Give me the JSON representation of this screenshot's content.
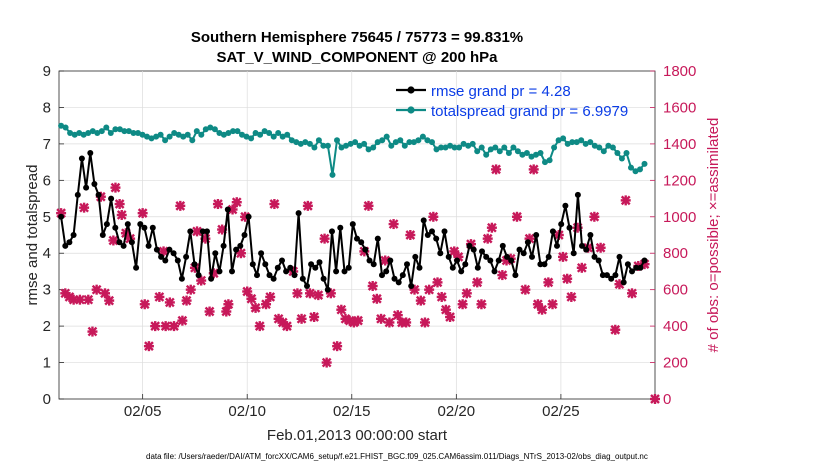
{
  "chart_data": {
    "type": "line",
    "title_line1": "Southern Hemisphere 75645 / 75773 = 99.831%",
    "title_line2": "SAT_V_WIND_COMPONENT @ 200 hPa",
    "xlabel": "Feb.01,2013 00:00:00 start",
    "ylabel_left": "rmse and totalspread",
    "ylabel_right": "# of obs: o=possible; ×=assimilated",
    "xlim": [
      1.0,
      29.5
    ],
    "ylim_left": [
      0,
      9
    ],
    "ylim_right": [
      0,
      1800
    ],
    "x_ticks": [
      {
        "x": 5,
        "label": "02/05"
      },
      {
        "x": 10,
        "label": "02/10"
      },
      {
        "x": 15,
        "label": "02/15"
      },
      {
        "x": 20,
        "label": "02/20"
      },
      {
        "x": 25,
        "label": "02/25"
      }
    ],
    "y_ticks_left": [
      "0",
      "1",
      "2",
      "3",
      "4",
      "5",
      "6",
      "7",
      "8",
      "9"
    ],
    "y_ticks_right": [
      "0",
      "200",
      "400",
      "600",
      "800",
      "1000",
      "1200",
      "1400",
      "1600",
      "1800"
    ],
    "legend": [
      {
        "label": "rmse grand pr = 4.28",
        "color": "#000000"
      },
      {
        "label": "totalspread grand pr = 6.9979",
        "color": "#0e8a85"
      }
    ],
    "footer": "data file: /Users/raeder/DAI/ATM_forcXX/CAM6_setup/f.e21.FHIST_BGC.f09_025.CAM6assim.011/Diags_NTrS_2013-02/obs_diag_output.nc",
    "series": [
      {
        "name": "rmse",
        "color": "#000000",
        "y": [
          5.0,
          4.2,
          4.3,
          4.5,
          5.6,
          6.6,
          5.8,
          6.75,
          5.9,
          5.6,
          4.5,
          4.8,
          5.5,
          4.7,
          4.3,
          4.2,
          4.8,
          4.3,
          3.6,
          4.8,
          4.7,
          4.2,
          4.7,
          4.1,
          3.9,
          3.8,
          4.1,
          4.0,
          3.8,
          3.3,
          3.9,
          4.6,
          3.7,
          3.4,
          4.6,
          4.6,
          3.3,
          4.0,
          3.5,
          4.2,
          5.2,
          3.5,
          4.1,
          4.2,
          4.5,
          5.0,
          3.7,
          3.4,
          4.0,
          3.7,
          3.4,
          3.3,
          3.6,
          3.8,
          3.5,
          3.6,
          3.4,
          5.1,
          3.3,
          3.1,
          3.7,
          3.6,
          3.75,
          3.3,
          3.0,
          4.6,
          3.5,
          4.7,
          3.5,
          3.6,
          4.8,
          4.4,
          4.3,
          4.1,
          3.8,
          3.7,
          4.4,
          3.4,
          3.5,
          3.8,
          3.3,
          3.2,
          3.4,
          3.7,
          3.1,
          3.9,
          3.6,
          4.9,
          4.5,
          4.6,
          4.4,
          4.0,
          4.6,
          3.9,
          3.6,
          3.8,
          3.5,
          3.7,
          4.2,
          4.1,
          3.6,
          4.05,
          3.9,
          3.8,
          3.5,
          3.8,
          4.2,
          3.9,
          3.8,
          3.4,
          4.1,
          4.0,
          4.3,
          3.9,
          4.5,
          3.7,
          3.7,
          3.9,
          4.6,
          4.2,
          4.8,
          5.3,
          4.7,
          4.0,
          5.6,
          4.2,
          4.1,
          4.5,
          3.9,
          3.8,
          3.4,
          3.4,
          3.3,
          3.4,
          3.9,
          3.2,
          3.7,
          3.5,
          3.6,
          3.6,
          3.8
        ]
      },
      {
        "name": "totalspread",
        "color": "#0e8a85",
        "y": [
          7.5,
          7.45,
          7.3,
          7.25,
          7.3,
          7.25,
          7.3,
          7.35,
          7.3,
          7.35,
          7.45,
          7.3,
          7.4,
          7.4,
          7.35,
          7.35,
          7.3,
          7.3,
          7.25,
          7.2,
          7.15,
          7.2,
          7.25,
          7.1,
          7.2,
          7.3,
          7.25,
          7.2,
          7.25,
          7.1,
          7.35,
          7.25,
          7.4,
          7.45,
          7.4,
          7.3,
          7.25,
          7.3,
          7.35,
          7.35,
          7.25,
          7.2,
          7.15,
          7.3,
          7.25,
          7.35,
          7.3,
          7.2,
          7.3,
          7.2,
          7.25,
          7.1,
          7.05,
          7.0,
          7.05,
          7.0,
          6.9,
          7.1,
          6.95,
          6.95,
          6.15,
          7.1,
          6.9,
          6.95,
          7.0,
          7.05,
          6.95,
          7.0,
          6.85,
          6.9,
          7.05,
          7.1,
          7.2,
          6.95,
          7.05,
          7.1,
          6.95,
          7.05,
          7.05,
          7.1,
          7.2,
          7.1,
          7.05,
          6.85,
          6.9,
          6.9,
          6.95,
          6.9,
          6.9,
          7.0,
          6.95,
          7.0,
          6.8,
          6.9,
          6.7,
          6.85,
          6.9,
          6.8,
          6.9,
          6.75,
          6.9,
          6.8,
          6.7,
          6.75,
          6.65,
          6.7,
          6.75,
          6.5,
          6.55,
          6.9,
          7.1,
          7.15,
          7.0,
          7.05,
          7.05,
          7.1,
          7.0,
          7.05,
          6.95,
          6.9,
          6.8,
          6.95,
          6.9,
          6.75,
          6.6,
          6.75,
          6.35,
          6.25,
          6.3,
          6.45
        ]
      },
      {
        "name": "# assimilated",
        "color": "#c7195a",
        "markers": [
          {
            "x": 1.1,
            "y": 1020
          },
          {
            "x": 1.3,
            "y": 580
          },
          {
            "x": 1.5,
            "y": 560
          },
          {
            "x": 1.7,
            "y": 545
          },
          {
            "x": 2.0,
            "y": 545
          },
          {
            "x": 2.2,
            "y": 1050
          },
          {
            "x": 2.4,
            "y": 545
          },
          {
            "x": 2.6,
            "y": 370
          },
          {
            "x": 2.8,
            "y": 600
          },
          {
            "x": 3.0,
            "y": 1110
          },
          {
            "x": 3.2,
            "y": 580
          },
          {
            "x": 3.4,
            "y": 540
          },
          {
            "x": 3.7,
            "y": 1160
          },
          {
            "x": 3.9,
            "y": 1070
          },
          {
            "x": 3.6,
            "y": 870
          },
          {
            "x": 4.2,
            "y": 910
          },
          {
            "x": 4.4,
            "y": 880
          },
          {
            "x": 4.0,
            "y": 1010
          },
          {
            "x": 5.0,
            "y": 1020
          },
          {
            "x": 5.1,
            "y": 520
          },
          {
            "x": 5.3,
            "y": 290
          },
          {
            "x": 5.6,
            "y": 400
          },
          {
            "x": 5.8,
            "y": 560
          },
          {
            "x": 6.0,
            "y": 810
          },
          {
            "x": 6.1,
            "y": 400
          },
          {
            "x": 6.3,
            "y": 530
          },
          {
            "x": 6.5,
            "y": 400
          },
          {
            "x": 6.8,
            "y": 1060
          },
          {
            "x": 6.9,
            "y": 430
          },
          {
            "x": 7.1,
            "y": 540
          },
          {
            "x": 7.3,
            "y": 600
          },
          {
            "x": 7.5,
            "y": 720
          },
          {
            "x": 7.6,
            "y": 920
          },
          {
            "x": 7.8,
            "y": 650
          },
          {
            "x": 8.0,
            "y": 880
          },
          {
            "x": 8.2,
            "y": 480
          },
          {
            "x": 8.4,
            "y": 690
          },
          {
            "x": 8.6,
            "y": 1070
          },
          {
            "x": 8.8,
            "y": 930
          },
          {
            "x": 9.0,
            "y": 480
          },
          {
            "x": 9.1,
            "y": 520
          },
          {
            "x": 9.3,
            "y": 1040
          },
          {
            "x": 9.5,
            "y": 1080
          },
          {
            "x": 9.7,
            "y": 800
          },
          {
            "x": 9.9,
            "y": 1000
          },
          {
            "x": 10.0,
            "y": 590
          },
          {
            "x": 10.2,
            "y": 550
          },
          {
            "x": 10.4,
            "y": 500
          },
          {
            "x": 10.6,
            "y": 400
          },
          {
            "x": 10.9,
            "y": 520
          },
          {
            "x": 11.1,
            "y": 560
          },
          {
            "x": 11.3,
            "y": 1070
          },
          {
            "x": 11.5,
            "y": 440
          },
          {
            "x": 11.7,
            "y": 420
          },
          {
            "x": 11.9,
            "y": 400
          },
          {
            "x": 12.2,
            "y": 700
          },
          {
            "x": 12.4,
            "y": 580
          },
          {
            "x": 12.6,
            "y": 440
          },
          {
            "x": 12.9,
            "y": 1060
          },
          {
            "x": 13.0,
            "y": 580
          },
          {
            "x": 13.2,
            "y": 450
          },
          {
            "x": 13.4,
            "y": 570
          },
          {
            "x": 13.7,
            "y": 880
          },
          {
            "x": 13.8,
            "y": 200
          },
          {
            "x": 14.0,
            "y": 580
          },
          {
            "x": 14.3,
            "y": 290
          },
          {
            "x": 14.5,
            "y": 490
          },
          {
            "x": 14.7,
            "y": 440
          },
          {
            "x": 14.9,
            "y": 430
          },
          {
            "x": 15.1,
            "y": 420
          },
          {
            "x": 15.3,
            "y": 430
          },
          {
            "x": 15.6,
            "y": 810
          },
          {
            "x": 15.8,
            "y": 1060
          },
          {
            "x": 16.0,
            "y": 620
          },
          {
            "x": 16.2,
            "y": 550
          },
          {
            "x": 16.4,
            "y": 440
          },
          {
            "x": 16.6,
            "y": 760
          },
          {
            "x": 16.8,
            "y": 420
          },
          {
            "x": 17.0,
            "y": 960
          },
          {
            "x": 17.2,
            "y": 460
          },
          {
            "x": 17.4,
            "y": 420
          },
          {
            "x": 17.6,
            "y": 420
          },
          {
            "x": 17.8,
            "y": 900
          },
          {
            "x": 18.0,
            "y": 600
          },
          {
            "x": 18.3,
            "y": 540
          },
          {
            "x": 18.5,
            "y": 420
          },
          {
            "x": 18.7,
            "y": 600
          },
          {
            "x": 18.9,
            "y": 1000
          },
          {
            "x": 19.1,
            "y": 640
          },
          {
            "x": 19.3,
            "y": 560
          },
          {
            "x": 19.5,
            "y": 490
          },
          {
            "x": 19.7,
            "y": 450
          },
          {
            "x": 19.9,
            "y": 810
          },
          {
            "x": 20.1,
            "y": 780
          },
          {
            "x": 20.3,
            "y": 520
          },
          {
            "x": 20.5,
            "y": 580
          },
          {
            "x": 20.7,
            "y": 850
          },
          {
            "x": 21.0,
            "y": 640
          },
          {
            "x": 21.2,
            "y": 520
          },
          {
            "x": 21.5,
            "y": 880
          },
          {
            "x": 21.7,
            "y": 940
          },
          {
            "x": 21.9,
            "y": 1260
          },
          {
            "x": 22.2,
            "y": 680
          },
          {
            "x": 22.4,
            "y": 760
          },
          {
            "x": 22.6,
            "y": 770
          },
          {
            "x": 22.9,
            "y": 1000
          },
          {
            "x": 23.3,
            "y": 600
          },
          {
            "x": 23.5,
            "y": 880
          },
          {
            "x": 23.7,
            "y": 1260
          },
          {
            "x": 23.9,
            "y": 520
          },
          {
            "x": 24.1,
            "y": 490
          },
          {
            "x": 24.4,
            "y": 640
          },
          {
            "x": 24.6,
            "y": 520
          },
          {
            "x": 24.9,
            "y": 900
          },
          {
            "x": 25.1,
            "y": 780
          },
          {
            "x": 25.3,
            "y": 660
          },
          {
            "x": 25.5,
            "y": 560
          },
          {
            "x": 25.8,
            "y": 940
          },
          {
            "x": 26.0,
            "y": 720
          },
          {
            "x": 26.3,
            "y": 830
          },
          {
            "x": 26.6,
            "y": 1000
          },
          {
            "x": 26.9,
            "y": 830
          },
          {
            "x": 27.6,
            "y": 380
          },
          {
            "x": 27.8,
            "y": 630
          },
          {
            "x": 28.1,
            "y": 1090
          },
          {
            "x": 28.4,
            "y": 580
          },
          {
            "x": 28.7,
            "y": 730
          },
          {
            "x": 29.0,
            "y": 740
          },
          {
            "x": 29.5,
            "y": 0
          }
        ]
      }
    ]
  }
}
